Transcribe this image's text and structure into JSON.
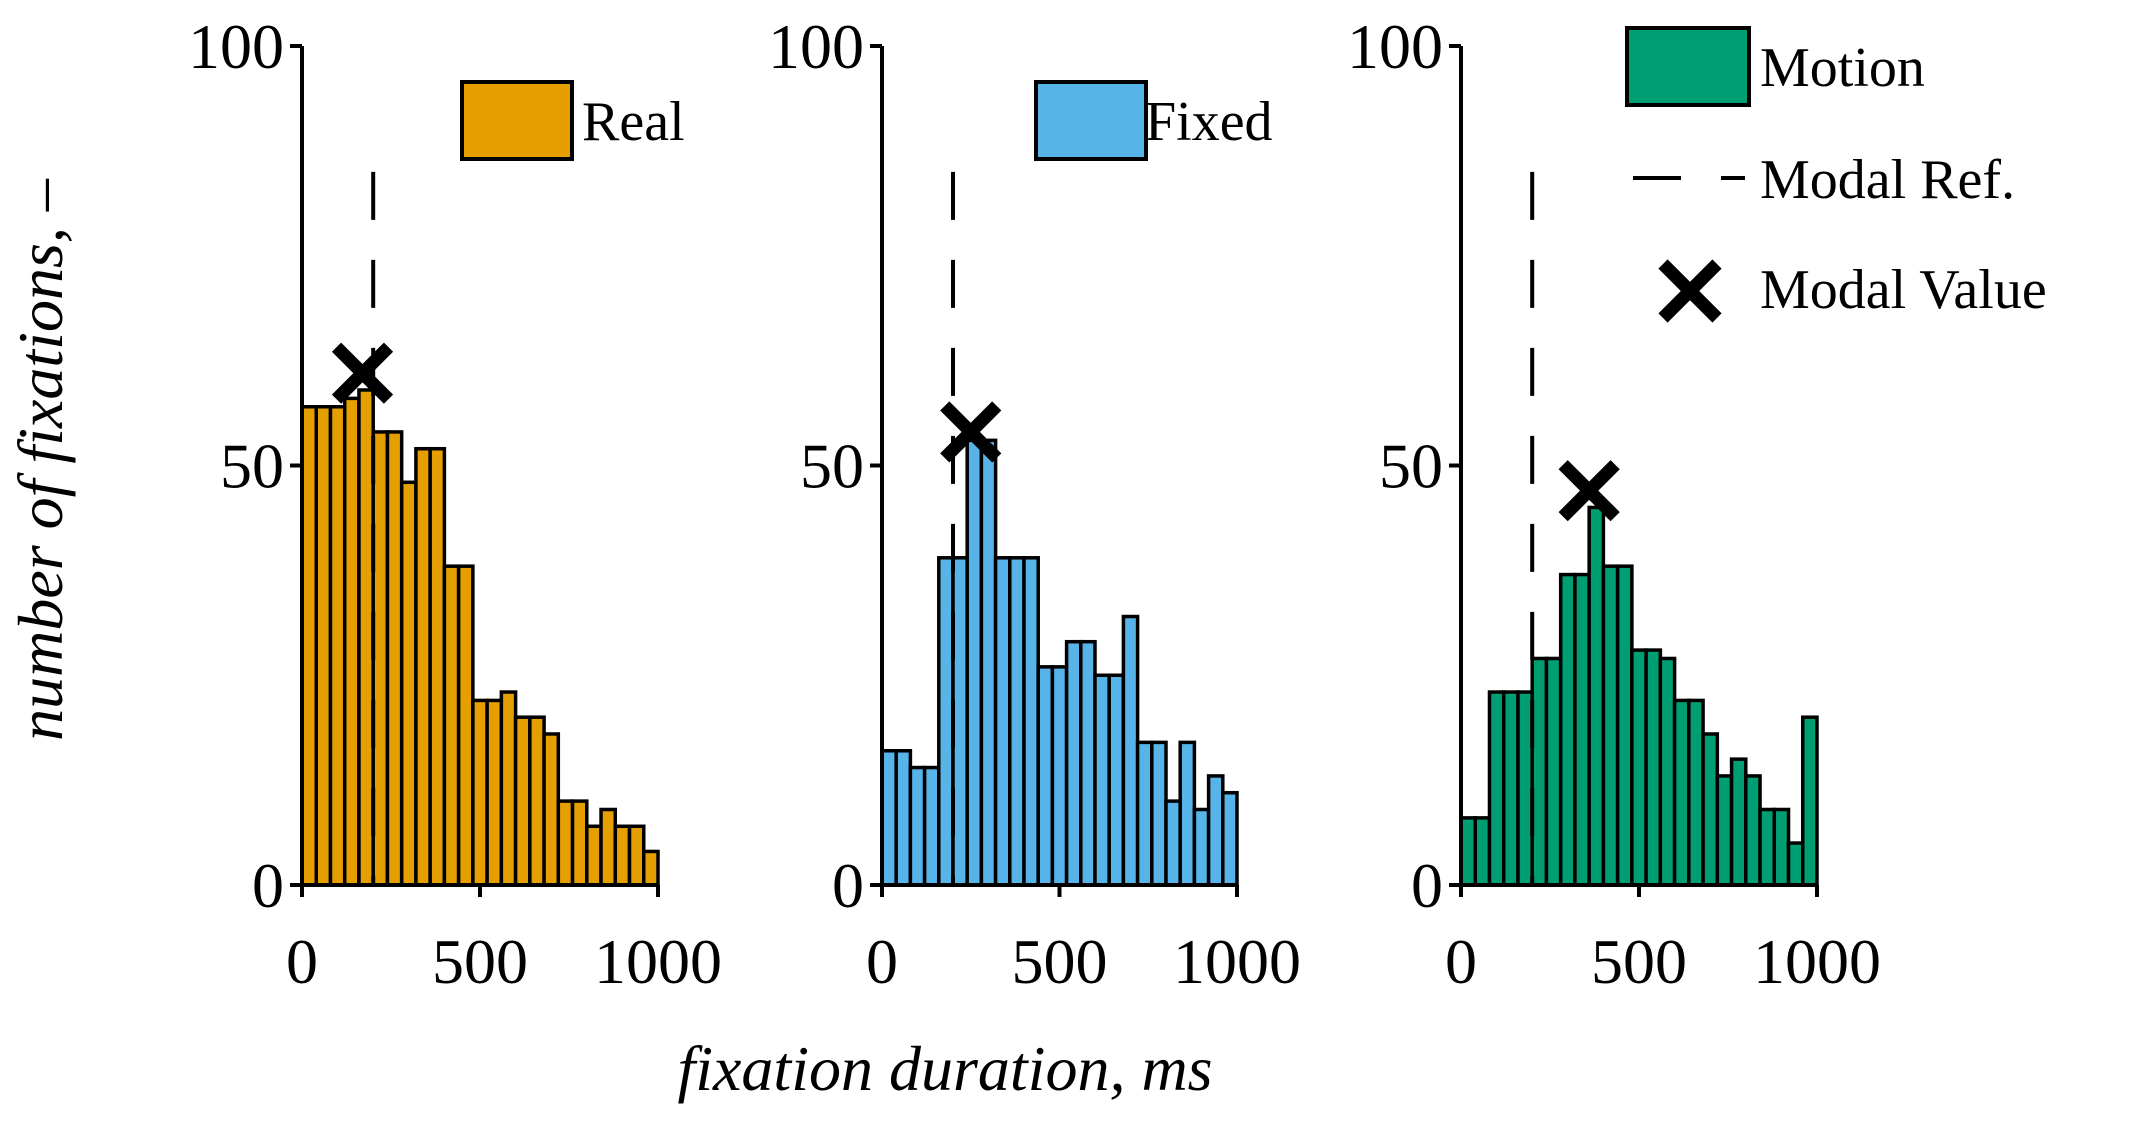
{
  "chart_data": {
    "type": "bar",
    "xlabel": "fixation duration, ms",
    "ylabel": "number of fixations, –",
    "ylim": [
      0,
      100
    ],
    "xlim": [
      0,
      1000
    ],
    "yticks": [
      "0",
      "50",
      "100"
    ],
    "xticks": [
      "0",
      "500",
      "1000"
    ],
    "bin_width_ms": 40,
    "modal_reference_ms": 200,
    "legend": {
      "motion": "Motion",
      "modal_ref": "Modal Ref.",
      "modal_value": "Modal Value"
    },
    "panels": [
      {
        "name": "Real",
        "color": "#E69F00",
        "bin_starts": [
          0,
          40,
          80,
          120,
          160,
          200,
          240,
          280,
          320,
          360,
          400,
          440,
          480,
          520,
          560,
          600,
          640,
          680,
          720,
          760,
          800,
          840,
          880,
          920,
          960
        ],
        "values": [
          57,
          57,
          57,
          58,
          59,
          54,
          54,
          48,
          52,
          52,
          38,
          38,
          22,
          22,
          23,
          20,
          20,
          18,
          10,
          10,
          7,
          9,
          7,
          7,
          4
        ],
        "modal_value": {
          "x": 170,
          "y": 61
        }
      },
      {
        "name": "Fixed",
        "color": "#56B4E9",
        "bin_starts": [
          0,
          40,
          80,
          120,
          160,
          200,
          240,
          280,
          320,
          360,
          400,
          440,
          480,
          520,
          560,
          600,
          640,
          680,
          720,
          760,
          800,
          840,
          880,
          920,
          960
        ],
        "values": [
          16,
          16,
          14,
          14,
          39,
          39,
          53,
          53,
          39,
          39,
          39,
          26,
          26,
          29,
          29,
          25,
          25,
          32,
          17,
          17,
          10,
          17,
          9,
          13,
          11
        ],
        "modal_value": {
          "x": 250,
          "y": 54
        }
      },
      {
        "name": "Motion",
        "color": "#009E73",
        "bin_starts": [
          0,
          40,
          80,
          120,
          160,
          200,
          240,
          280,
          320,
          360,
          400,
          440,
          480,
          520,
          560,
          600,
          640,
          680,
          720,
          760,
          800,
          840,
          880,
          920,
          960
        ],
        "values": [
          8,
          8,
          23,
          23,
          23,
          27,
          27,
          37,
          37,
          45,
          38,
          38,
          28,
          28,
          27,
          22,
          22,
          18,
          13,
          15,
          13,
          9,
          9,
          5,
          20
        ],
        "modal_value": {
          "x": 360,
          "y": 47
        }
      }
    ]
  }
}
